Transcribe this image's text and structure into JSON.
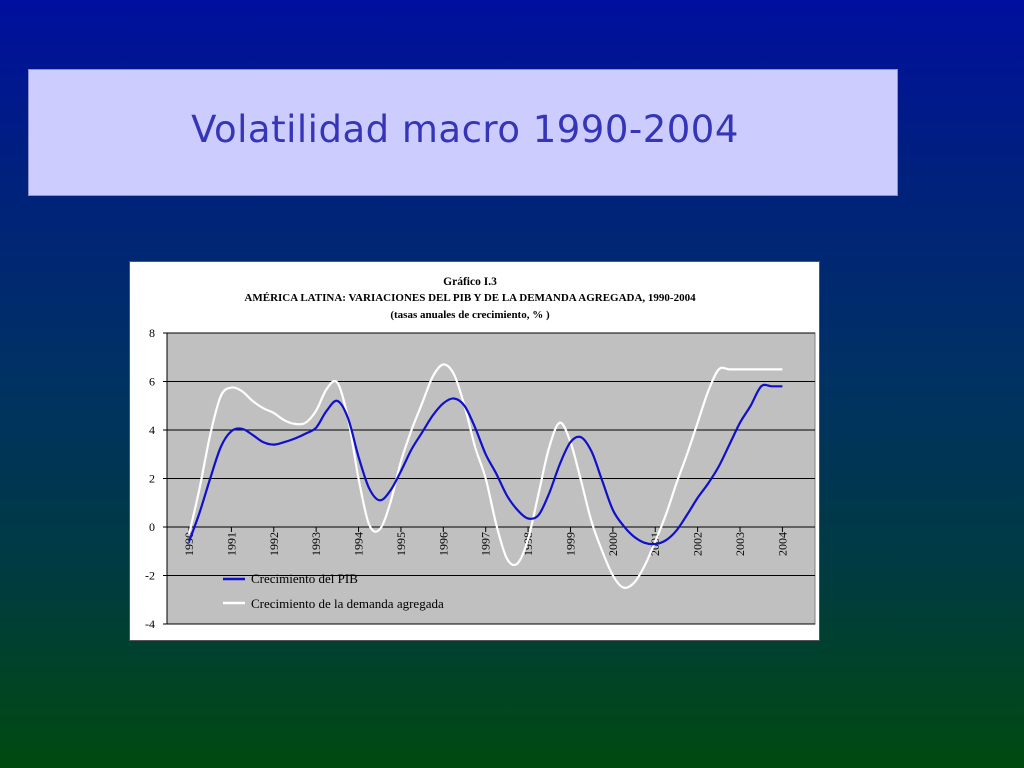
{
  "slide": {
    "title": "Volatilidad macro 1990-2004"
  },
  "chart_data": {
    "type": "line",
    "title": "Gráfico I.3",
    "subtitle": "AMÉRICA LATINA: VARIACIONES DEL PIB Y DE LA DEMANDA AGREGADA, 1990-2004",
    "note": "(tasas anuales de crecimiento, % )",
    "xlabel": "",
    "ylabel": "",
    "x_tick_labels": [
      "1990",
      "1991",
      "1992",
      "1993",
      "1994",
      "1995",
      "1996",
      "1997",
      "1998",
      "1999",
      "2000",
      "2001",
      "2002",
      "2003",
      "2004"
    ],
    "y_tick_labels": [
      "8",
      "6",
      "4",
      "2",
      "0",
      "-2",
      "-4"
    ],
    "xlim": [
      1990,
      2004
    ],
    "ylim": [
      -4,
      8
    ],
    "grid": true,
    "legend_position": "bottom-left",
    "series": [
      {
        "name": "Crecimiento del PIB",
        "color": "#1010cc",
        "x": [
          1990.0,
          1990.25,
          1990.5,
          1990.75,
          1991.0,
          1991.25,
          1991.5,
          1991.75,
          1992.0,
          1992.25,
          1992.5,
          1992.75,
          1993.0,
          1993.25,
          1993.5,
          1993.75,
          1994.0,
          1994.25,
          1994.5,
          1994.75,
          1995.0,
          1995.25,
          1995.5,
          1995.75,
          1996.0,
          1996.25,
          1996.5,
          1996.75,
          1997.0,
          1997.25,
          1997.5,
          1997.75,
          1998.0,
          1998.25,
          1998.5,
          1998.75,
          1999.0,
          1999.25,
          1999.5,
          1999.75,
          2000.0,
          2000.25,
          2000.5,
          2000.75,
          2001.0,
          2001.25,
          2001.5,
          2001.75,
          2002.0,
          2002.25,
          2002.5,
          2002.75,
          2003.0,
          2003.25,
          2003.5,
          2003.75,
          2004.0
        ],
        "y": [
          -0.6,
          0.6,
          2.0,
          3.3,
          3.95,
          4.05,
          3.8,
          3.5,
          3.4,
          3.5,
          3.65,
          3.85,
          4.1,
          4.8,
          5.2,
          4.5,
          2.9,
          1.6,
          1.1,
          1.5,
          2.3,
          3.2,
          3.9,
          4.6,
          5.1,
          5.3,
          5.0,
          4.1,
          3.0,
          2.2,
          1.3,
          0.7,
          0.35,
          0.5,
          1.4,
          2.6,
          3.5,
          3.7,
          3.1,
          1.9,
          0.7,
          0.05,
          -0.4,
          -0.65,
          -0.7,
          -0.55,
          -0.15,
          0.5,
          1.2,
          1.8,
          2.5,
          3.4,
          4.3,
          5.0,
          5.8,
          5.8,
          5.8
        ]
      },
      {
        "name": "Crecimiento de la demanda agregada",
        "color": "#ffffff",
        "x": [
          1990.0,
          1990.25,
          1990.5,
          1990.75,
          1991.0,
          1991.25,
          1991.5,
          1991.75,
          1992.0,
          1992.25,
          1992.5,
          1992.75,
          1993.0,
          1993.25,
          1993.5,
          1993.75,
          1994.0,
          1994.25,
          1994.5,
          1994.75,
          1995.0,
          1995.25,
          1995.5,
          1995.75,
          1996.0,
          1996.25,
          1996.5,
          1996.75,
          1997.0,
          1997.25,
          1997.5,
          1997.75,
          1998.0,
          1998.25,
          1998.5,
          1998.75,
          1999.0,
          1999.25,
          1999.5,
          1999.75,
          2000.0,
          2000.25,
          2000.5,
          2000.75,
          2001.0,
          2001.25,
          2001.5,
          2001.75,
          2002.0,
          2002.25,
          2002.5,
          2002.75,
          2003.0,
          2003.25,
          2003.5,
          2003.75,
          2004.0
        ],
        "y": [
          -0.3,
          1.6,
          3.8,
          5.4,
          5.75,
          5.6,
          5.2,
          4.9,
          4.7,
          4.4,
          4.25,
          4.3,
          4.8,
          5.7,
          5.95,
          4.5,
          2.0,
          0.1,
          -0.1,
          1.0,
          2.7,
          4.0,
          5.1,
          6.2,
          6.7,
          6.3,
          5.0,
          3.3,
          2.0,
          0.1,
          -1.3,
          -1.5,
          -0.5,
          1.4,
          3.3,
          4.3,
          3.5,
          1.9,
          0.2,
          -1.0,
          -2.0,
          -2.5,
          -2.3,
          -1.6,
          -0.6,
          0.5,
          1.8,
          3.0,
          4.3,
          5.6,
          6.5,
          6.5,
          6.5,
          6.5,
          6.5,
          6.5,
          6.5
        ]
      }
    ]
  }
}
